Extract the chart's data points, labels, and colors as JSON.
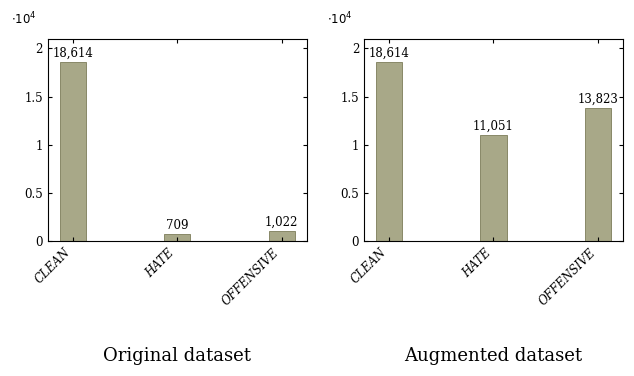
{
  "original": {
    "categories": [
      "CLEAN",
      "HATE",
      "OFFENSIVE"
    ],
    "values": [
      18614,
      709,
      1022
    ],
    "labels": [
      "18,614",
      "709",
      "1,022"
    ]
  },
  "augmented": {
    "categories": [
      "CLEAN",
      "HATE",
      "OFFENSIVE"
    ],
    "values": [
      18614,
      11051,
      13823
    ],
    "labels": [
      "18,614",
      "11,051",
      "13,823"
    ]
  },
  "bar_color": "#a8a888",
  "bar_edge_color": "#888868",
  "ylim": [
    0,
    21000
  ],
  "yticks": [
    0,
    5000,
    10000,
    15000,
    20000
  ],
  "ytick_labels": [
    "0",
    "0.5",
    "1",
    "1.5",
    "2"
  ],
  "xlabel_original": "Original dataset",
  "xlabel_augmented": "Augmented dataset",
  "label_fontsize": 8.5,
  "tick_label_fontsize": 8.5,
  "caption_fontsize": 13,
  "bar_width": 0.25
}
